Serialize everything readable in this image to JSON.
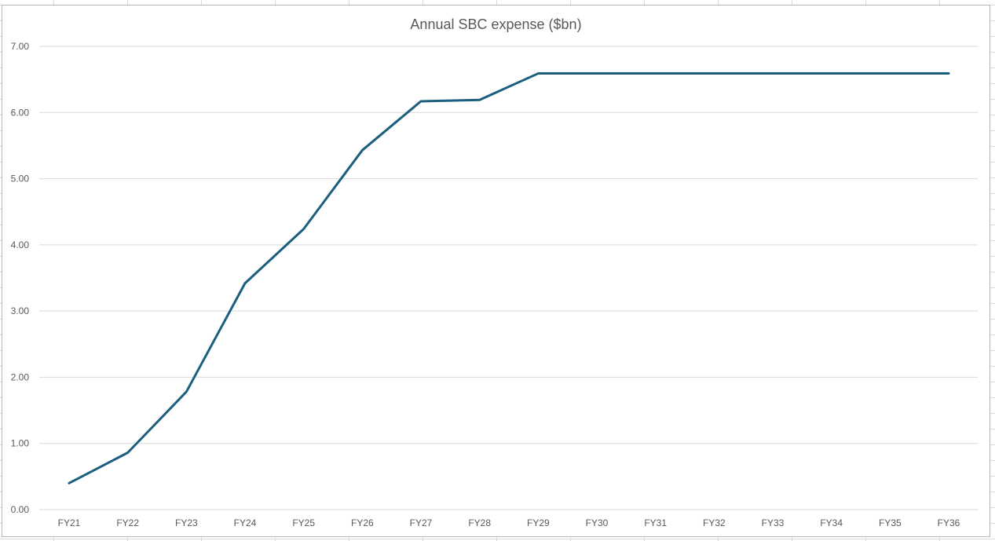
{
  "chart_data": {
    "type": "line",
    "title": "Annual SBC expense ($bn)",
    "xlabel": "",
    "ylabel": "",
    "categories": [
      "FY21",
      "FY22",
      "FY23",
      "FY24",
      "FY25",
      "FY26",
      "FY27",
      "FY28",
      "FY29",
      "FY30",
      "FY31",
      "FY32",
      "FY33",
      "FY34",
      "FY35",
      "FY36"
    ],
    "series": [
      {
        "values": [
          0.4,
          0.86,
          1.78,
          3.42,
          4.24,
          5.43,
          6.17,
          6.19,
          6.59,
          6.59,
          6.59,
          6.59,
          6.59,
          6.59,
          6.59,
          6.59
        ],
        "color": "#1b5e7e"
      }
    ],
    "ylim": [
      0,
      7
    ],
    "yticks": [
      "0.00",
      "1.00",
      "2.00",
      "3.00",
      "4.00",
      "5.00",
      "6.00",
      "7.00"
    ],
    "grid": true,
    "legend": "none"
  }
}
